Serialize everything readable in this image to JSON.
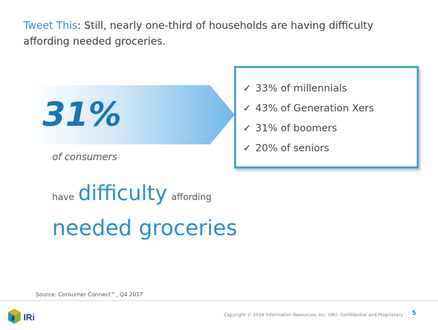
{
  "slide": {
    "headline": {
      "tweet_link": "Tweet This",
      "text": ": Still, nearly one-third of households are having difficulty affording needed groceries."
    },
    "big_stat": "31%",
    "of_consumers": "of consumers",
    "line2": {
      "have": "have",
      "difficulty": "difficulty",
      "affording": "affording"
    },
    "needed_groceries": "needed groceries",
    "list": [
      "33% of millennials",
      "43% of Generation Xers",
      "31% of boomers",
      "20% of seniors"
    ],
    "source": "Source: Consumer Connect™, Q4 2017"
  },
  "footer": {
    "logo_text": "IRi",
    "copyright": "Copyright © 2018 Information Resources, Inc. (IRI). Confidential and Proprietary.",
    "page_number": "5"
  },
  "colors": {
    "accent": "#2a8fc6",
    "big_stat": "#1a76b4",
    "box_border": "#4aa3cf"
  },
  "icons": [
    "check-icon",
    "iri-cube-icon"
  ]
}
